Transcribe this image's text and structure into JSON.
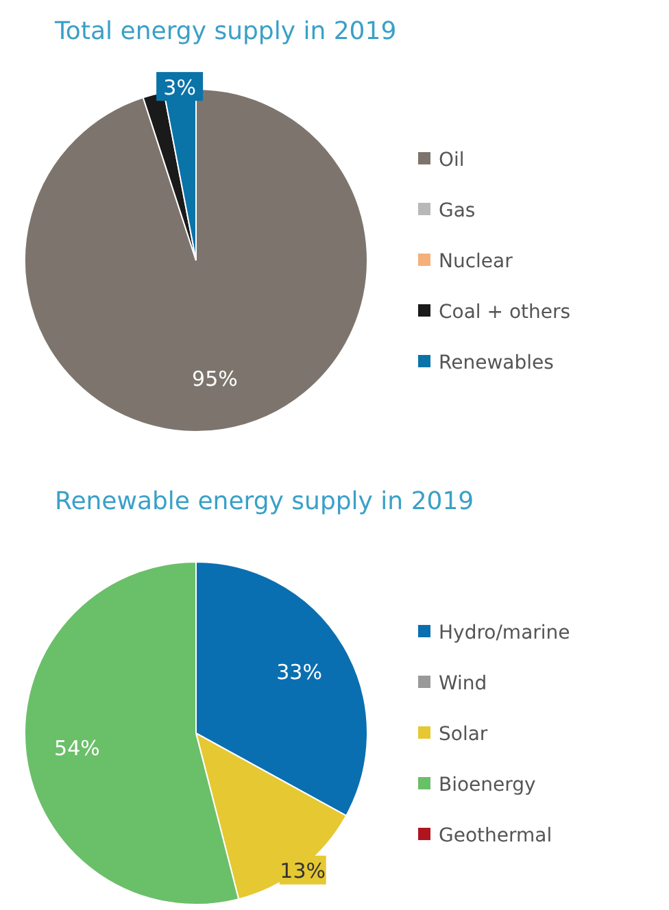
{
  "chart_data": [
    {
      "type": "pie",
      "title": "Total energy supply in 2019",
      "categories": [
        "Oil",
        "Gas",
        "Nuclear",
        "Coal + others",
        "Renewables"
      ],
      "values": [
        95,
        0,
        0,
        2,
        3
      ],
      "colors": [
        "#7d756d",
        "#b8b8b8",
        "#f5b079",
        "#1a1a1a",
        "#0a73a8"
      ],
      "value_labels": [
        "95%",
        null,
        null,
        null,
        "3%"
      ],
      "legend": "right"
    },
    {
      "type": "pie",
      "title": "Renewable energy supply in 2019",
      "categories": [
        "Hydro/marine",
        "Wind",
        "Solar",
        "Bioenergy",
        "Geothermal"
      ],
      "values": [
        33,
        0,
        13,
        54,
        0
      ],
      "colors": [
        "#0a6fb0",
        "#999999",
        "#e6c832",
        "#6abf69",
        "#b0151f"
      ],
      "value_labels": [
        "33%",
        null,
        "13%",
        "54%",
        null
      ],
      "legend": "right"
    }
  ]
}
